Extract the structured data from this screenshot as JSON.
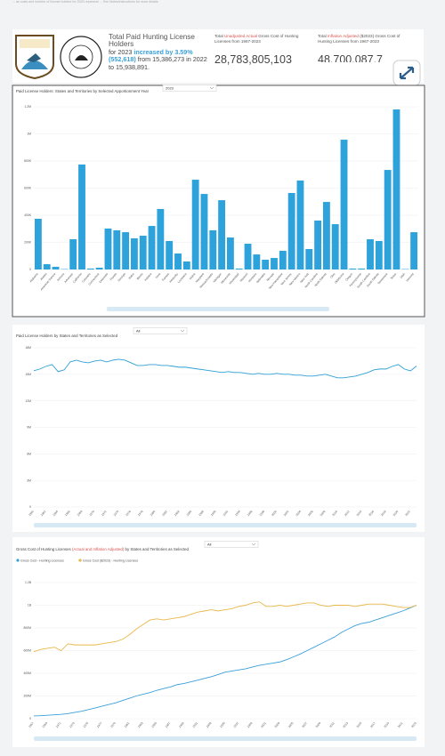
{
  "note": "... as costs and number of license holders for 2023 represent ... See Notes/Instructions for more details.",
  "header": {
    "title": "Total Paid Hunting License Holders",
    "parts": [
      "for 2023 ",
      "increased by 3.59%",
      "(552,618)",
      " from 15,386,273 in 2022 to 15,938,891."
    ]
  },
  "cards": [
    {
      "parts": [
        "Total ",
        "Unadjusted Actual",
        " Gross Cost of Hunting Licenses from 1967-2023"
      ],
      "value": "28,783,805,103"
    },
    {
      "parts": [
        "Total ",
        "Inflation Adjusted",
        " ($2023) Gross Cost of Hunting Licenses from 1967-2023"
      ],
      "value": "48,700,087,7"
    }
  ],
  "chart_data": [
    {
      "type": "bar",
      "title": [
        {
          "text": "Paid License Holders: States and Territories by Selected Apportionment Year",
          "color": "#444"
        }
      ],
      "dropdown": "2023",
      "color": "#2ea3db",
      "categories": [
        "Alabama",
        "Alaska",
        "American Samoa",
        "Arizona",
        "Arkansas",
        "California",
        "Colorado",
        "Connecticut",
        "Delaware",
        "Florida",
        "Georgia",
        "Idaho",
        "Illinois",
        "Indiana",
        "Iowa",
        "Kansas",
        "Kentucky",
        "Louisiana",
        "Maine",
        "Maryland",
        "Massachusetts",
        "Michigan",
        "Minnesota",
        "Mississippi",
        "Missouri",
        "Montana",
        "Nebraska",
        "Nevada",
        "New Hampshire",
        "New Jersey",
        "New Mexico",
        "New York",
        "North Carolina",
        "North Dakota",
        "Ohio",
        "Oklahoma",
        "Oregon",
        "Pennsylvania",
        "South Carolina",
        "South Dakota",
        "Tennessee",
        "Texas",
        "Utah",
        "Vermont"
      ],
      "values": [
        374000,
        39000,
        20000,
        3000,
        223000,
        774000,
        7000,
        13000,
        302000,
        289000,
        275000,
        230000,
        249000,
        321000,
        446000,
        210000,
        118000,
        59000,
        662000,
        557000,
        289000,
        511000,
        236000,
        7000,
        190000,
        111000,
        72000,
        85000,
        138000,
        564000,
        656000,
        151000,
        361000,
        498000,
        334000,
        957000,
        7000,
        7000,
        223000,
        210000,
        734000,
        1180000,
        3000,
        275000
      ],
      "ylim": [
        0,
        1200000
      ],
      "yticks": [
        0,
        {
          "value": 200000,
          "label": "200K"
        },
        {
          "value": 400000,
          "label": "400K"
        },
        {
          "value": 600000,
          "label": "600K"
        },
        {
          "value": 800000,
          "label": "800K"
        },
        {
          "value": 1000000,
          "label": "1M"
        },
        {
          "value": 1200000,
          "label": "1.2M"
        }
      ],
      "grid": true
    },
    {
      "type": "line",
      "title": [
        {
          "text": "Paid License Holders by States and Territories as Selected",
          "color": "#444"
        }
      ],
      "dropdown": "All",
      "x": [
        1960,
        1961,
        1962,
        1963,
        1964,
        1965,
        1966,
        1967,
        1968,
        1969,
        1970,
        1971,
        1972,
        1973,
        1974,
        1975,
        1976,
        1977,
        1978,
        1979,
        1980,
        1981,
        1982,
        1983,
        1984,
        1985,
        1986,
        1987,
        1988,
        1989,
        1990,
        1991,
        1992,
        1993,
        1994,
        1995,
        1996,
        1997,
        1998,
        1999,
        2000,
        2001,
        2002,
        2003,
        2004,
        2005,
        2006,
        2007,
        2008,
        2009,
        2010,
        2011,
        2012,
        2013,
        2014,
        2015,
        2016,
        2017,
        2018,
        2019,
        2020,
        2021,
        2022,
        2023
      ],
      "series": [
        {
          "name": "Paid License Holders",
          "color": "#2e9fd6",
          "values": [
            15400000,
            15600000,
            15900000,
            16100000,
            15300000,
            15500000,
            16400000,
            16600000,
            16400000,
            16300000,
            16500000,
            16600000,
            16400000,
            16600000,
            16700000,
            16600000,
            16300000,
            16000000,
            16000000,
            16100000,
            16100000,
            16000000,
            16000000,
            15900000,
            15800000,
            15800000,
            15700000,
            15600000,
            15500000,
            15400000,
            15300000,
            15200000,
            15300000,
            15200000,
            15200000,
            15100000,
            15000000,
            15100000,
            15000000,
            15000000,
            15100000,
            15000000,
            15000000,
            14900000,
            14900000,
            14800000,
            14800000,
            14900000,
            15000000,
            14800000,
            14600000,
            14600000,
            14700000,
            14800000,
            15000000,
            15200000,
            15500000,
            15600000,
            15600000,
            15900000,
            16100000,
            15600000,
            15386273,
            15938891
          ]
        }
      ],
      "xlim": [
        1960,
        2023
      ],
      "xticks": [
        1960,
        1962,
        1964,
        1966,
        1968,
        1970,
        1972,
        1974,
        1976,
        1978,
        1980,
        1982,
        1984,
        1986,
        1988,
        1990,
        1992,
        1994,
        1996,
        1998,
        2000,
        2002,
        2004,
        2006,
        2008,
        2010,
        2012,
        2014,
        2016,
        2018,
        2020,
        2022
      ],
      "ylim": [
        0,
        18000000
      ],
      "yticks": [
        0,
        {
          "value": 3000000,
          "label": "3M"
        },
        {
          "value": 6000000,
          "label": "6M"
        },
        {
          "value": 9000000,
          "label": "9M"
        },
        {
          "value": 12000000,
          "label": "12M"
        },
        {
          "value": 15000000,
          "label": "15M"
        },
        {
          "value": 18000000,
          "label": "18M"
        }
      ],
      "grid": true
    },
    {
      "type": "line",
      "title": [
        {
          "text": "Gross Cost of Hunting Licenses ",
          "color": "#444"
        },
        {
          "text": "(Actual and Inflation Adjusted)",
          "color": "#d9534f"
        },
        {
          "text": " by States and Territories as Selected",
          "color": "#444"
        }
      ],
      "dropdown": "All",
      "legend": "top-left",
      "x": [
        1967,
        1968,
        1969,
        1970,
        1971,
        1972,
        1973,
        1974,
        1975,
        1976,
        1977,
        1978,
        1979,
        1980,
        1981,
        1982,
        1983,
        1984,
        1985,
        1986,
        1987,
        1988,
        1989,
        1990,
        1991,
        1992,
        1993,
        1994,
        1995,
        1996,
        1997,
        1998,
        1999,
        2000,
        2001,
        2002,
        2003,
        2004,
        2005,
        2006,
        2007,
        2008,
        2009,
        2010,
        2011,
        2012,
        2013,
        2014,
        2015,
        2016,
        2017,
        2018,
        2019,
        2020,
        2021,
        2022,
        2023
      ],
      "series": [
        {
          "name": "Gross Cost - Hunting Licenses",
          "color": "#3aa0d8",
          "values": [
            24000000,
            26000000,
            30000000,
            34000000,
            38000000,
            45000000,
            55000000,
            65000000,
            80000000,
            95000000,
            110000000,
            125000000,
            140000000,
            160000000,
            180000000,
            200000000,
            215000000,
            230000000,
            250000000,
            265000000,
            280000000,
            300000000,
            310000000,
            325000000,
            340000000,
            355000000,
            370000000,
            390000000,
            410000000,
            420000000,
            430000000,
            440000000,
            455000000,
            470000000,
            480000000,
            490000000,
            500000000,
            520000000,
            545000000,
            570000000,
            600000000,
            630000000,
            660000000,
            690000000,
            720000000,
            760000000,
            790000000,
            820000000,
            840000000,
            850000000,
            870000000,
            890000000,
            910000000,
            930000000,
            950000000,
            975000000,
            1000000000
          ]
        },
        {
          "name": "Gross Cost ($2023) - Hunting Licenses",
          "color": "#e8b84a",
          "values": [
            590000000,
            610000000,
            620000000,
            630000000,
            600000000,
            660000000,
            650000000,
            650000000,
            650000000,
            650000000,
            660000000,
            670000000,
            680000000,
            700000000,
            740000000,
            790000000,
            830000000,
            870000000,
            880000000,
            870000000,
            880000000,
            890000000,
            900000000,
            920000000,
            940000000,
            950000000,
            960000000,
            950000000,
            960000000,
            970000000,
            990000000,
            1000000000,
            1020000000,
            1030000000,
            990000000,
            990000000,
            1000000000,
            990000000,
            1000000000,
            1010000000,
            1020000000,
            1020000000,
            1000000000,
            990000000,
            1000000000,
            1000000000,
            1000000000,
            990000000,
            1000000000,
            1010000000,
            1010000000,
            1010000000,
            1000000000,
            990000000,
            980000000,
            980000000,
            1000000000
          ]
        }
      ],
      "xlim": [
        1967,
        2023
      ],
      "xticks": [
        1967,
        1969,
        1971,
        1973,
        1975,
        1977,
        1979,
        1981,
        1983,
        1985,
        1987,
        1989,
        1991,
        1993,
        1995,
        1997,
        1999,
        2001,
        2003,
        2005,
        2007,
        2009,
        2011,
        2013,
        2015,
        2017,
        2019,
        2021,
        2023
      ],
      "ylim": [
        0,
        1200000000
      ],
      "yticks": [
        0,
        {
          "value": 200000000,
          "label": "200M"
        },
        {
          "value": 400000000,
          "label": "400M"
        },
        {
          "value": 600000000,
          "label": "600M"
        },
        {
          "value": 800000000,
          "label": "800M"
        },
        {
          "value": 1000000000,
          "label": "1B"
        },
        {
          "value": 1200000000,
          "label": "1.2B"
        }
      ],
      "grid": true
    }
  ]
}
